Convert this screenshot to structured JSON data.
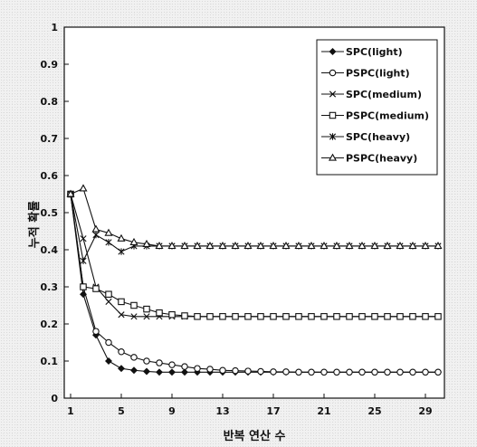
{
  "chart_data": {
    "type": "line",
    "title": "",
    "xlabel": "반복 연산 수",
    "ylabel": "누적 확률",
    "xlim": [
      1,
      30
    ],
    "ylim": [
      0,
      1
    ],
    "xticks": [
      1,
      5,
      9,
      13,
      17,
      21,
      25,
      29
    ],
    "yticks": [
      0,
      0.1,
      0.2,
      0.3,
      0.4,
      0.5,
      0.6,
      0.7,
      0.8,
      0.9,
      1
    ],
    "grid": false,
    "legend_position": "top-right",
    "x": [
      1,
      2,
      3,
      4,
      5,
      6,
      7,
      8,
      9,
      10,
      11,
      12,
      13,
      14,
      15,
      16,
      17,
      18,
      19,
      20,
      21,
      22,
      23,
      24,
      25,
      26,
      27,
      28,
      29,
      30
    ],
    "series": [
      {
        "name": "SPC(light)",
        "marker": "diamond",
        "values": [
          0.55,
          0.28,
          0.17,
          0.1,
          0.08,
          0.075,
          0.072,
          0.07,
          0.07,
          0.07,
          0.07,
          0.07,
          0.07,
          0.07,
          0.07,
          0.07,
          0.07,
          0.07,
          0.07,
          0.07,
          0.07,
          0.07,
          0.07,
          0.07,
          0.07,
          0.07,
          0.07,
          0.07,
          0.07,
          0.07
        ]
      },
      {
        "name": "PSPC(light)",
        "marker": "circle",
        "values": [
          0.55,
          0.3,
          0.18,
          0.15,
          0.125,
          0.11,
          0.1,
          0.095,
          0.09,
          0.085,
          0.08,
          0.078,
          0.075,
          0.074,
          0.073,
          0.072,
          0.071,
          0.071,
          0.07,
          0.07,
          0.07,
          0.07,
          0.07,
          0.07,
          0.07,
          0.07,
          0.07,
          0.07,
          0.07,
          0.07
        ]
      },
      {
        "name": "SPC(medium)",
        "marker": "x",
        "values": [
          0.55,
          0.43,
          0.3,
          0.26,
          0.225,
          0.22,
          0.22,
          0.22,
          0.22,
          0.22,
          0.22,
          0.22,
          0.22,
          0.22,
          0.22,
          0.22,
          0.22,
          0.22,
          0.22,
          0.22,
          0.22,
          0.22,
          0.22,
          0.22,
          0.22,
          0.22,
          0.22,
          0.22,
          0.22,
          0.22
        ]
      },
      {
        "name": "PSPC(medium)",
        "marker": "square",
        "values": [
          0.55,
          0.3,
          0.295,
          0.28,
          0.26,
          0.25,
          0.24,
          0.23,
          0.225,
          0.222,
          0.22,
          0.22,
          0.22,
          0.22,
          0.22,
          0.22,
          0.22,
          0.22,
          0.22,
          0.22,
          0.22,
          0.22,
          0.22,
          0.22,
          0.22,
          0.22,
          0.22,
          0.22,
          0.22,
          0.22
        ]
      },
      {
        "name": "SPC(heavy)",
        "marker": "star",
        "values": [
          0.55,
          0.37,
          0.44,
          0.42,
          0.395,
          0.41,
          0.41,
          0.41,
          0.41,
          0.41,
          0.41,
          0.41,
          0.41,
          0.41,
          0.41,
          0.41,
          0.41,
          0.41,
          0.41,
          0.41,
          0.41,
          0.41,
          0.41,
          0.41,
          0.41,
          0.41,
          0.41,
          0.41,
          0.41,
          0.41
        ]
      },
      {
        "name": "PSPC(heavy)",
        "marker": "triangle",
        "values": [
          0.55,
          0.565,
          0.455,
          0.445,
          0.43,
          0.42,
          0.415,
          0.41,
          0.41,
          0.41,
          0.41,
          0.41,
          0.41,
          0.41,
          0.41,
          0.41,
          0.41,
          0.41,
          0.41,
          0.41,
          0.41,
          0.41,
          0.41,
          0.41,
          0.41,
          0.41,
          0.41,
          0.41,
          0.41,
          0.41
        ]
      }
    ]
  }
}
